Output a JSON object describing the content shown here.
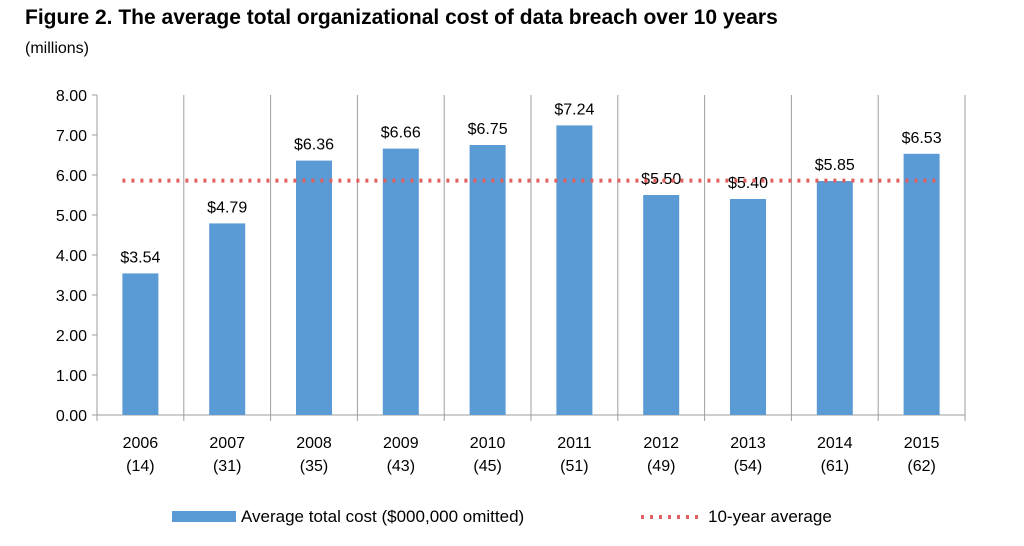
{
  "header": {
    "title": "Figure 2. The average total organizational cost of data breach over 10 years",
    "subtitle": "(millions)"
  },
  "chart_data": {
    "type": "bar",
    "categories": [
      "2006",
      "2007",
      "2008",
      "2009",
      "2010",
      "2011",
      "2012",
      "2013",
      "2014",
      "2015"
    ],
    "category_sublabels": [
      "(14)",
      "(31)",
      "(35)",
      "(43)",
      "(45)",
      "(51)",
      "(49)",
      "(54)",
      "(61)",
      "(62)"
    ],
    "series": [
      {
        "name": "Average total cost ($000,000 omitted)",
        "values": [
          3.54,
          4.79,
          6.36,
          6.66,
          6.75,
          7.24,
          5.5,
          5.4,
          5.85,
          6.53
        ],
        "data_labels": [
          "$3.54",
          "$4.79",
          "$6.36",
          "$6.66",
          "$6.75",
          "$7.24",
          "$5.50",
          "$5.40",
          "$5.85",
          "$6.53"
        ],
        "color": "#5b9bd5"
      }
    ],
    "reference_line": {
      "name": "10-year average",
      "value": 5.86,
      "color": "#e06060",
      "style": "dotted"
    },
    "ylim": [
      0,
      8
    ],
    "yticks": [
      "0.00",
      "1.00",
      "2.00",
      "3.00",
      "4.00",
      "5.00",
      "6.00",
      "7.00",
      "8.00"
    ],
    "xlabel": "",
    "ylabel": "",
    "grid": "vertical category separators",
    "legend_position": "bottom"
  }
}
